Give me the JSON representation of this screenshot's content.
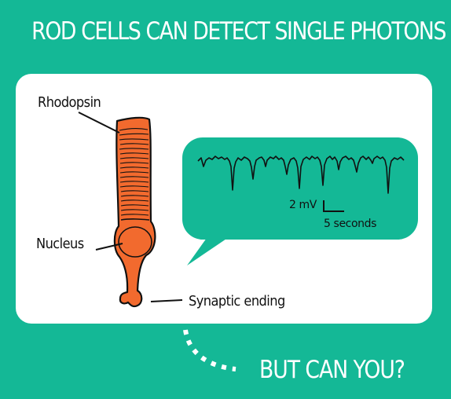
{
  "title": "ROD CELLS CAN DETECT SINGLE PHOTONS",
  "labels": {
    "rhodopsin": "Rhodopsin",
    "nucleus": "Nucleus",
    "synaptic_ending": "Synaptic ending"
  },
  "trace": {
    "voltage_scale": "2 mV",
    "time_scale": "5 seconds"
  },
  "footer": "BUT CAN YOU?",
  "colors": {
    "background": "#14b896",
    "panel": "#ffffff",
    "cell": "#f26a2e",
    "ink": "#111111"
  }
}
